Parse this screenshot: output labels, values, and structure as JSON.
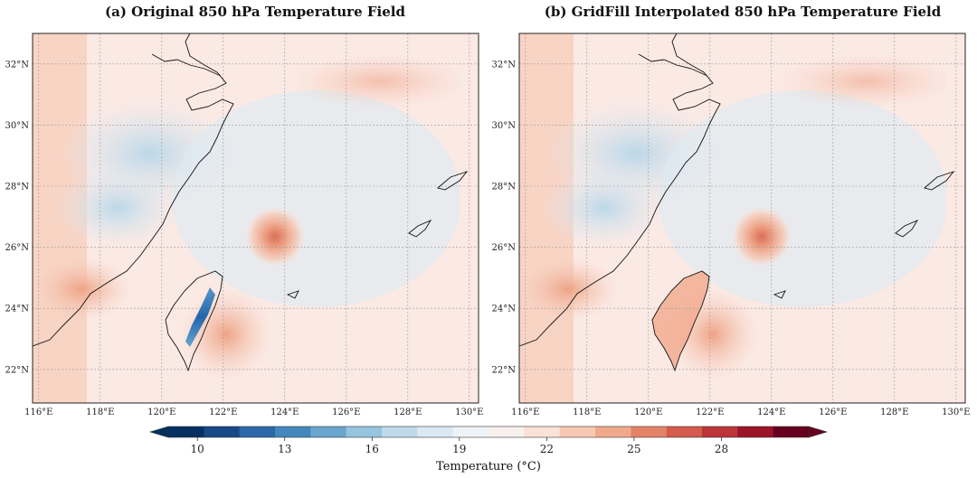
{
  "colors": {
    "background": "#fbe9e4",
    "cool_tint": "#dcebf4",
    "cool_mid": "#bcd7e8",
    "warm_tint": "#f6cbb8",
    "warm_mid": "#eea386",
    "warm_strong": "#d9705a",
    "cold_mountain": "#2166ac"
  },
  "chart_data": [
    {
      "type": "heatmap",
      "title": "(a) Original 850 hPa Temperature Field",
      "variable": "850 hPa temperature",
      "units": "°C",
      "lon_range": [
        115.8,
        130.3
      ],
      "lat_range": [
        20.9,
        33.0
      ],
      "x_ticks": [
        116,
        118,
        120,
        122,
        124,
        126,
        128,
        130
      ],
      "x_tick_labels": [
        "116°E",
        "118°E",
        "120°E",
        "122°E",
        "124°E",
        "126°E",
        "128°E",
        "130°E"
      ],
      "y_ticks": [
        22,
        24,
        26,
        28,
        30,
        32
      ],
      "y_tick_labels": [
        "22°N",
        "24°N",
        "26°N",
        "28°N",
        "30°N",
        "32°N"
      ],
      "grid": true,
      "features": {
        "warm_core_center": [
          123.5,
          26.3
        ],
        "cold_anomaly": "Central Mountain Range of Taiwan (~10–15 °C)",
        "cool_region": "East China inland near 118–121°E, 28–30°N"
      }
    },
    {
      "type": "heatmap",
      "title": "(b) GridFill Interpolated 850 hPa Temperature Field",
      "variable": "850 hPa temperature",
      "units": "°C",
      "lon_range": [
        115.8,
        130.3
      ],
      "lat_range": [
        20.9,
        33.0
      ],
      "x_ticks": [
        116,
        118,
        120,
        122,
        124,
        126,
        128,
        130
      ],
      "x_tick_labels": [
        "116°E",
        "118°E",
        "120°E",
        "122°E",
        "124°E",
        "126°E",
        "128°E",
        "130°E"
      ],
      "y_ticks": [
        22,
        24,
        26,
        28,
        30,
        32
      ],
      "y_tick_labels": [
        "22°N",
        "24°N",
        "26°N",
        "28°N",
        "30°N",
        "32°N"
      ],
      "grid": true,
      "features": {
        "warm_core_center": [
          123.5,
          26.3
        ],
        "cold_anomaly": "removed over Taiwan (filled with warm values)",
        "cool_region": "East China inland near 118–121°E, 28–30°N"
      }
    }
  ],
  "colorbar": {
    "label": "Temperature (°C)",
    "min": 9,
    "max": 31,
    "extend": "both",
    "tick_values": [
      10,
      13,
      16,
      19,
      22,
      25,
      28
    ],
    "tick_labels": [
      "10",
      "13",
      "16",
      "19",
      "22",
      "25",
      "28"
    ],
    "segments": [
      "#053061",
      "#174a86",
      "#2c67a9",
      "#4387bd",
      "#6aa6cd",
      "#96c4de",
      "#bedaea",
      "#dbe9f3",
      "#eef3f7",
      "#f8f0ec",
      "#fbe2d6",
      "#f7c9b3",
      "#f1a98c",
      "#e58368",
      "#d45b4d",
      "#bd3439",
      "#9c1429",
      "#67001f"
    ]
  }
}
